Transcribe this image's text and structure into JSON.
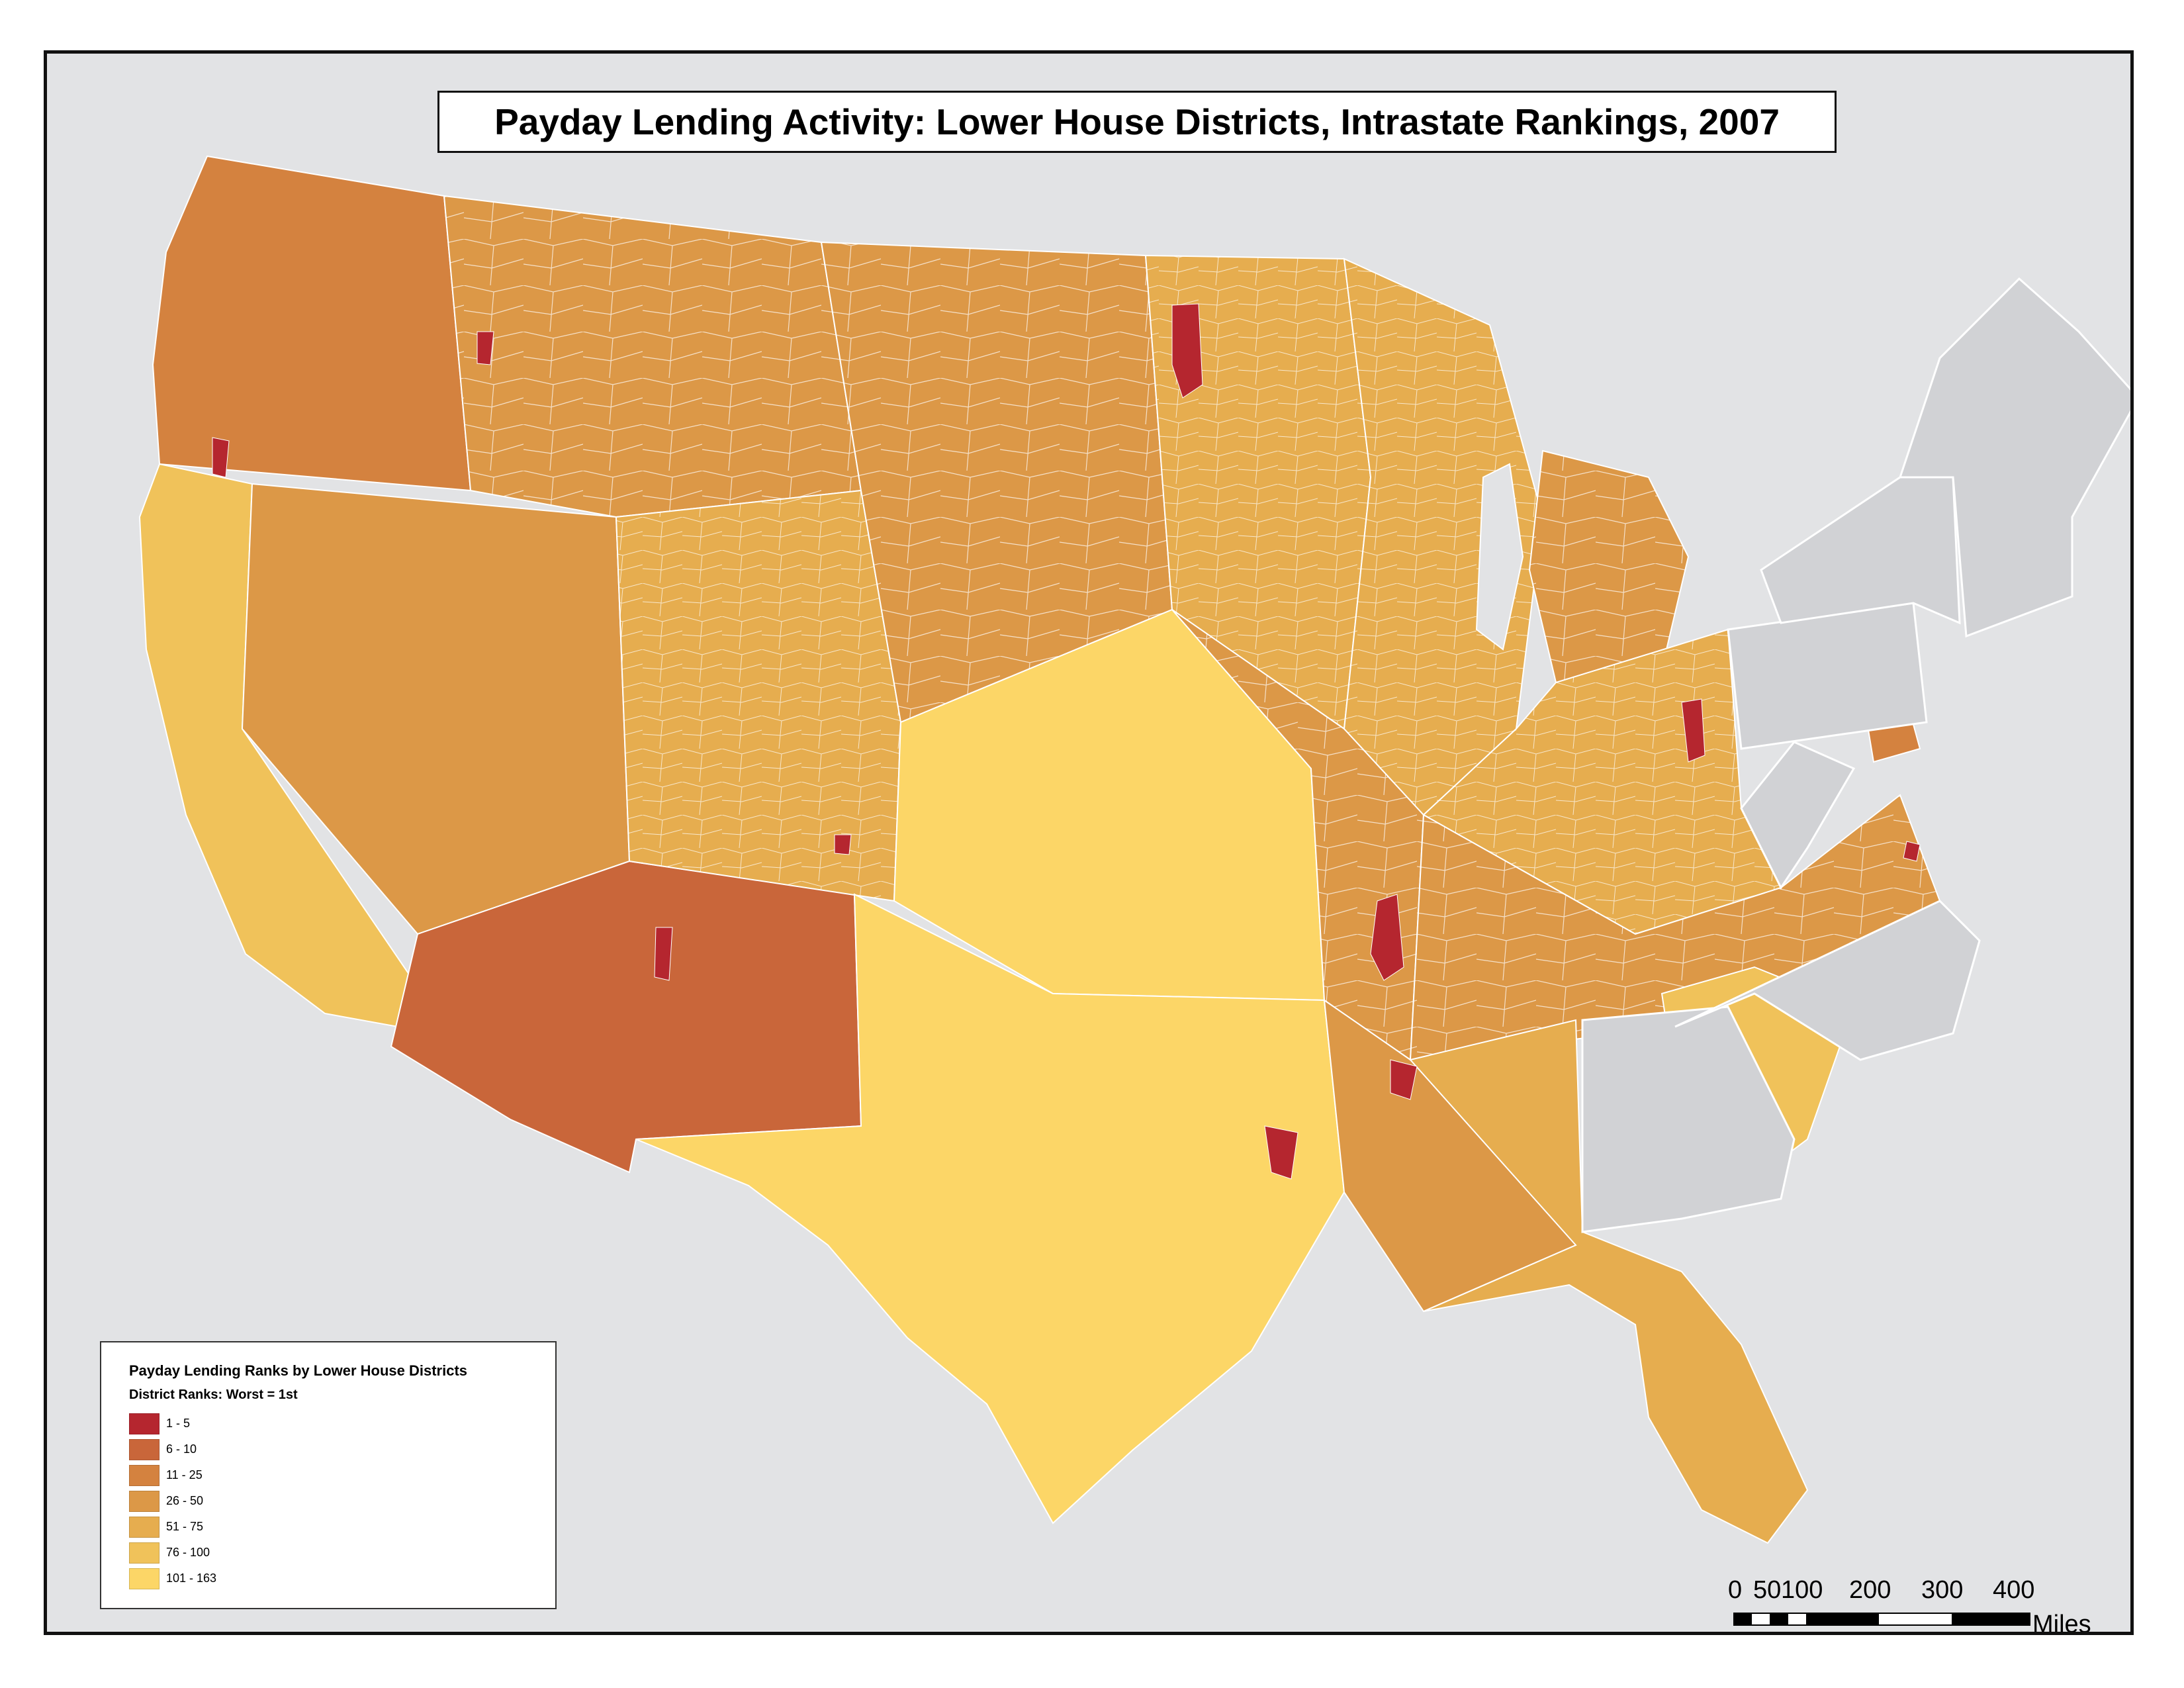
{
  "title": "Payday Lending Activity:  Lower House Districts, Intrastate Rankings, 2007",
  "legend": {
    "title": "Payday Lending Ranks by Lower House Districts",
    "subtitle": "District Ranks: Worst = 1st",
    "classes": [
      {
        "label": "1 - 5",
        "color": "#b5262f"
      },
      {
        "label": "6 - 10",
        "color": "#c9663a"
      },
      {
        "label": "11 - 25",
        "color": "#d4823f"
      },
      {
        "label": "26 - 50",
        "color": "#dc9847"
      },
      {
        "label": "51 - 75",
        "color": "#e6ad4f"
      },
      {
        "label": "76 - 100",
        "color": "#f0c25a"
      },
      {
        "label": "101 - 163",
        "color": "#fcd667"
      }
    ]
  },
  "scale_bar": {
    "labels": [
      "0",
      "50",
      "100",
      "200",
      "300",
      "400"
    ],
    "unit": "Miles"
  },
  "colors": {
    "background": "#e2e3e5",
    "no_data_state": "#d1d2d5",
    "border": "#ffffff"
  }
}
